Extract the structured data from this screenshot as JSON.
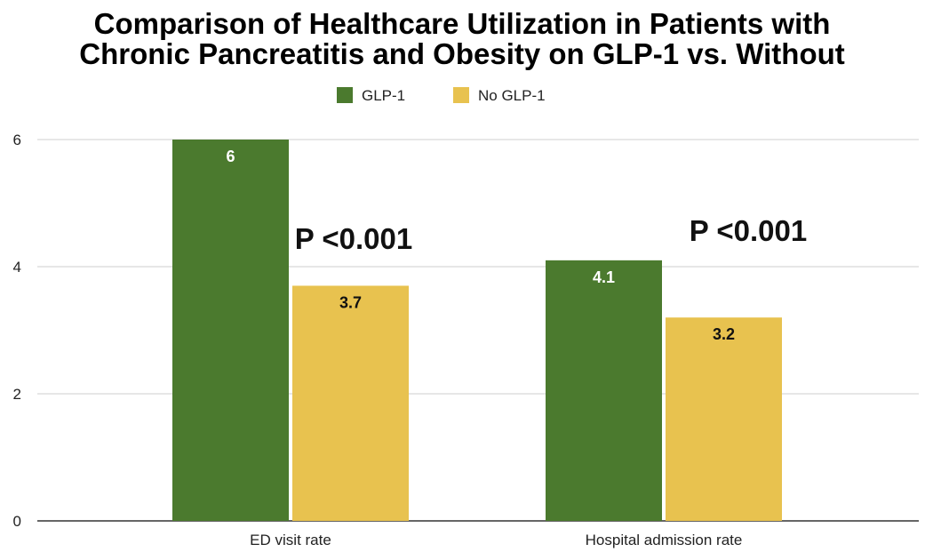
{
  "chart_data": {
    "type": "bar",
    "title": "Comparison of Healthcare Utilization in Patients with Chronic Pancreatitis and Obesity on GLP-1 vs. Without",
    "title_lines": [
      "Comparison of Healthcare Utilization in Patients with",
      "Chronic Pancreatitis and Obesity on GLP-1 vs. Without"
    ],
    "categories": [
      "ED visit rate",
      "Hospital admission rate"
    ],
    "series": [
      {
        "name": "GLP-1",
        "values": [
          6,
          4.1
        ],
        "labels": [
          "6",
          "4.1"
        ],
        "color": "#4b7a2e",
        "label_color": "#ffffff"
      },
      {
        "name": "No GLP-1",
        "values": [
          3.7,
          3.2
        ],
        "labels": [
          "3.7",
          "3.2"
        ],
        "color": "#e8c24f",
        "label_color": "#111111"
      }
    ],
    "ylim": [
      0,
      6
    ],
    "yticks": [
      0,
      2,
      4,
      6
    ],
    "ytick_labels": [
      "0",
      "2",
      "4",
      "6"
    ],
    "grid": true,
    "legend": "top-center",
    "annotations": [
      "P <0.001",
      "P <0.001"
    ],
    "xlabel": "",
    "ylabel": ""
  }
}
